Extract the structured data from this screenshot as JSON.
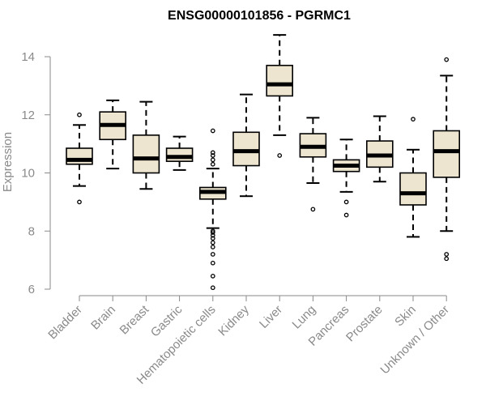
{
  "chart_data": {
    "type": "boxplot",
    "title": "ENSG00000101856 - PGRMC1",
    "xlabel": "",
    "ylabel": "Expression",
    "ylim": [
      6,
      14
    ],
    "yticks": [
      6,
      8,
      10,
      12,
      14
    ],
    "box_fill": "#ede5cf",
    "categories": [
      "Bladder",
      "Brain",
      "Breast",
      "Gastric",
      "Hematopoietic cells",
      "Kidney",
      "Liver",
      "Lung",
      "Pancreas",
      "Prostate",
      "Skin",
      "Unknown / Other"
    ],
    "series": [
      {
        "name": "Bladder",
        "whisker_low": 9.55,
        "q1": 10.3,
        "median": 10.45,
        "q3": 10.85,
        "whisker_high": 11.65,
        "outliers": [
          9.0,
          12.0
        ]
      },
      {
        "name": "Brain",
        "whisker_low": 10.15,
        "q1": 11.15,
        "median": 11.65,
        "q3": 12.1,
        "whisker_high": 12.5,
        "outliers": []
      },
      {
        "name": "Breast",
        "whisker_low": 9.45,
        "q1": 10.0,
        "median": 10.5,
        "q3": 11.3,
        "whisker_high": 12.45,
        "outliers": []
      },
      {
        "name": "Gastric",
        "whisker_low": 10.1,
        "q1": 10.4,
        "median": 10.55,
        "q3": 10.85,
        "whisker_high": 11.25,
        "outliers": []
      },
      {
        "name": "Hematopoietic cells",
        "whisker_low": 8.1,
        "q1": 9.1,
        "median": 9.35,
        "q3": 9.5,
        "whisker_high": 10.15,
        "outliers": [
          6.05,
          6.45,
          6.9,
          7.2,
          7.45,
          7.6,
          7.75,
          7.85,
          7.95,
          8.0,
          10.3,
          10.45,
          10.6,
          10.7,
          11.45
        ]
      },
      {
        "name": "Kidney",
        "whisker_low": 9.2,
        "q1": 10.25,
        "median": 10.75,
        "q3": 11.4,
        "whisker_high": 12.7,
        "outliers": []
      },
      {
        "name": "Liver",
        "whisker_low": 11.3,
        "q1": 12.65,
        "median": 13.05,
        "q3": 13.7,
        "whisker_high": 14.75,
        "outliers": [
          10.6
        ]
      },
      {
        "name": "Lung",
        "whisker_low": 9.65,
        "q1": 10.55,
        "median": 10.9,
        "q3": 11.35,
        "whisker_high": 11.9,
        "outliers": [
          8.75
        ]
      },
      {
        "name": "Pancreas",
        "whisker_low": 9.35,
        "q1": 10.05,
        "median": 10.25,
        "q3": 10.45,
        "whisker_high": 11.15,
        "outliers": [
          8.55,
          9.0
        ]
      },
      {
        "name": "Prostate",
        "whisker_low": 9.7,
        "q1": 10.2,
        "median": 10.6,
        "q3": 11.1,
        "whisker_high": 11.95,
        "outliers": []
      },
      {
        "name": "Skin",
        "whisker_low": 7.8,
        "q1": 8.9,
        "median": 9.3,
        "q3": 10.0,
        "whisker_high": 10.8,
        "outliers": [
          11.85
        ]
      },
      {
        "name": "Unknown / Other",
        "whisker_low": 8.0,
        "q1": 9.85,
        "median": 10.75,
        "q3": 11.45,
        "whisker_high": 13.35,
        "outliers": [
          7.05,
          7.2,
          13.9
        ]
      }
    ]
  }
}
